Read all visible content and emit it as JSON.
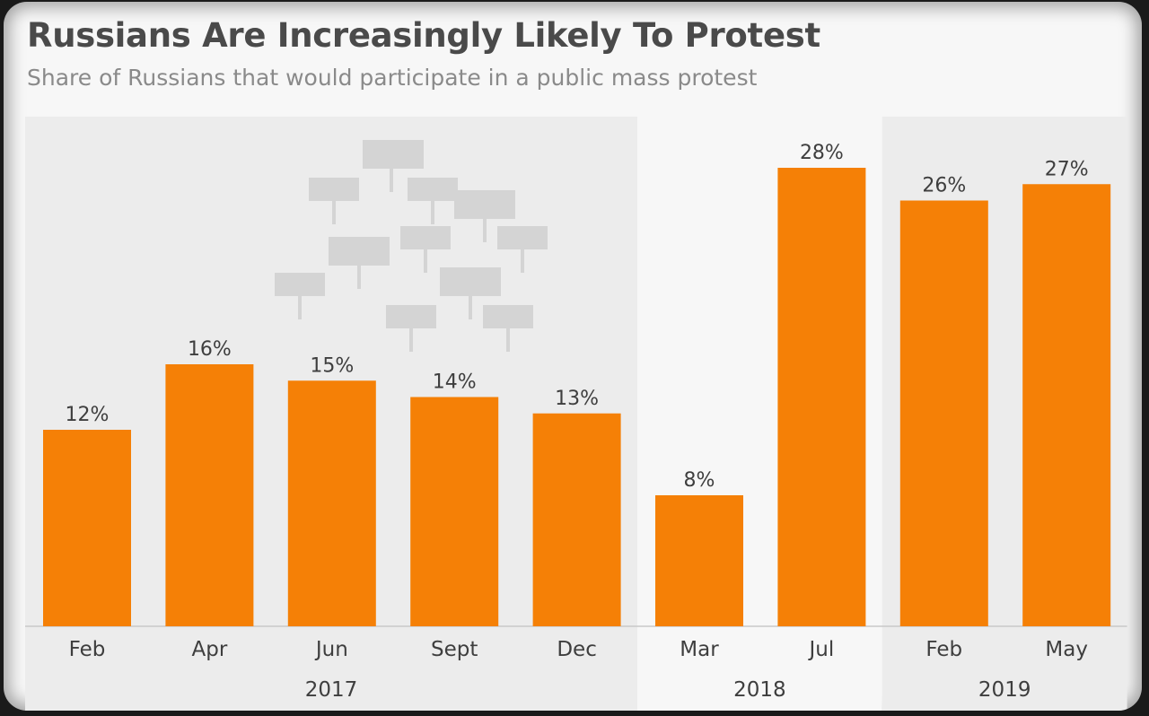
{
  "title": "Russians Are Increasingly Likely To Protest",
  "subtitle": "Share of Russians that would participate in a public mass protest",
  "colors": {
    "bar": "#f58006",
    "panel": "#ececec",
    "panel_alt": "#f7f7f7",
    "baseline": "#c8c8c8",
    "sign": "#d4d4d4"
  },
  "decoration": "protest-signs-illustration",
  "chart_data": {
    "type": "bar",
    "title": "Russians Are Increasingly Likely To Protest",
    "subtitle": "Share of Russians that would participate in a public mass protest",
    "categories": [
      "Feb",
      "Apr",
      "Jun",
      "Sept",
      "Dec",
      "Mar",
      "Jul",
      "Feb",
      "May"
    ],
    "values": [
      12,
      16,
      15,
      14,
      13,
      8,
      28,
      26,
      27
    ],
    "labels": [
      "12%",
      "16%",
      "15%",
      "14%",
      "13%",
      "8%",
      "28%",
      "26%",
      "27%"
    ],
    "groups": [
      {
        "label": "2017",
        "count": 5
      },
      {
        "label": "2018",
        "count": 2
      },
      {
        "label": "2019",
        "count": 2
      }
    ],
    "unit": "%",
    "ylim": [
      0,
      30
    ],
    "grid": false,
    "legend": "none"
  }
}
